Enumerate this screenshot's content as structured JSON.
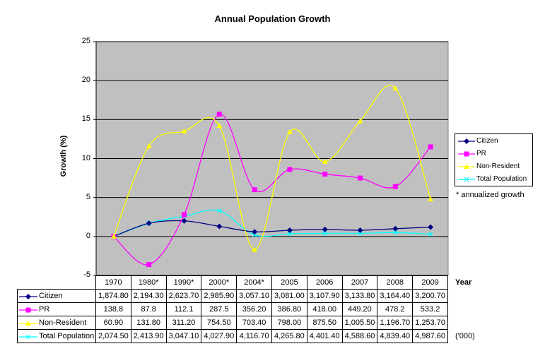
{
  "chart_data": {
    "type": "line",
    "title": "Annual Population Growth",
    "ylabel": "Growth (%)",
    "xlabel": "Year",
    "ylim": [
      -5,
      25
    ],
    "yticks": [
      "25",
      "20",
      "15",
      "10",
      "5",
      "0",
      "-5"
    ],
    "grid": true,
    "legend": "right",
    "categories": [
      "1970",
      "1980*",
      "1990*",
      "2000*",
      "2004*",
      "2005",
      "2006",
      "2007",
      "2008",
      "2009"
    ],
    "series": [
      {
        "name": "Citizen",
        "color": "#000080",
        "marker": "diamond",
        "values": [
          0,
          1.7,
          2.0,
          1.3,
          0.6,
          0.8,
          0.9,
          0.8,
          1.0,
          1.2
        ],
        "table": [
          "1,874.80",
          "2,194.30",
          "2,623.70",
          "2,985.90",
          "3,057.10",
          "3,081.00",
          "3,107.90",
          "3,133.80",
          "3,164.40",
          "3,200.70"
        ]
      },
      {
        "name": "PR",
        "color": "#FF00FF",
        "marker": "square",
        "values": [
          0,
          -3.6,
          2.8,
          15.7,
          6.0,
          8.6,
          8.0,
          7.5,
          6.4,
          11.5
        ],
        "table": [
          "138.8",
          "87.8",
          "112.1",
          "287.5",
          "356.20",
          "386.80",
          "418.00",
          "449.20",
          "478.2",
          "533.2"
        ]
      },
      {
        "name": "Non-Resident",
        "color": "#FFFF00",
        "marker": "triangle",
        "values": [
          0,
          11.6,
          13.5,
          14.2,
          -1.7,
          13.4,
          9.6,
          14.8,
          19.0,
          4.8
        ],
        "table": [
          "60.90",
          "131.80",
          "311.20",
          "754.50",
          "703.40",
          "798.00",
          "875.50",
          "1,005.50",
          "1,196.70",
          "1,253.70"
        ]
      },
      {
        "name": "Total Population",
        "color": "#00FFFF",
        "marker": "x",
        "values": [
          0,
          1.7,
          2.6,
          3.3,
          0.2,
          0.35,
          0.4,
          0.4,
          0.5,
          0.3
        ],
        "table": [
          "2,074.50",
          "2,413.90",
          "3,047.10",
          "4,027.90",
          "4,116.70",
          "4,265.80",
          "4,401.40",
          "4,588.60",
          "4,839.40",
          "4,987.60"
        ]
      }
    ],
    "plot_bg": "#C0C0C0",
    "footnote": "* annualized growth",
    "unit_note": "('000)"
  }
}
